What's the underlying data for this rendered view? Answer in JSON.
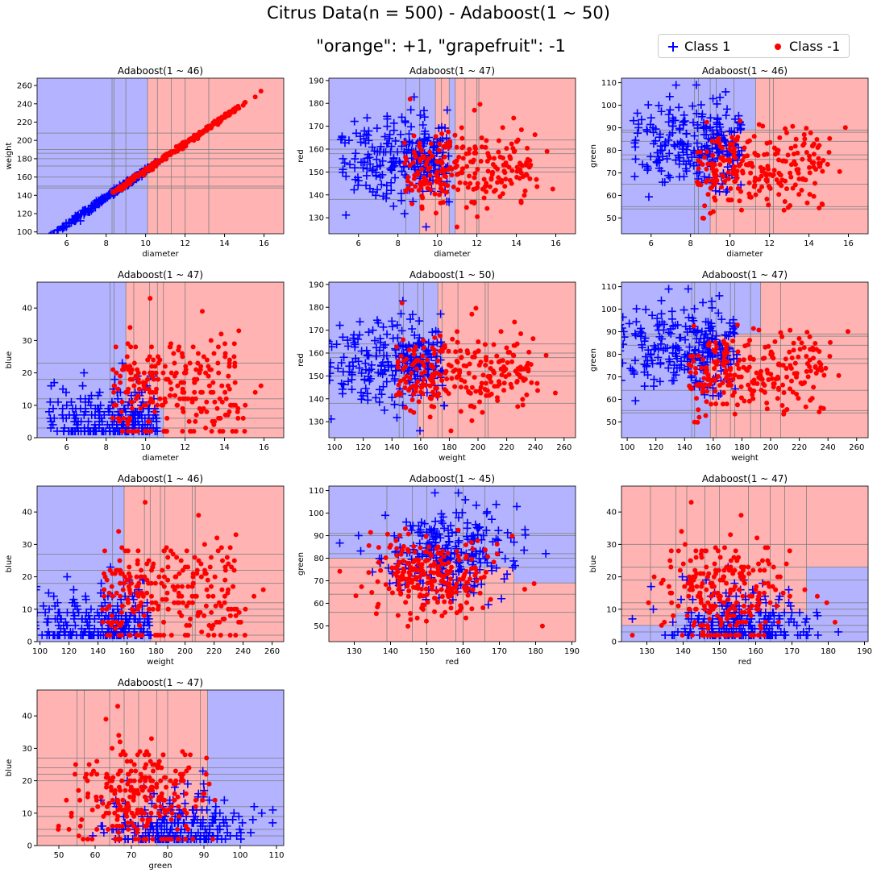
{
  "figure": {
    "title_line1": "Citrus Data(n = 500) - Adaboost(1 ~ 50)",
    "title_line2": "\"orange\": +1, \"grapefruit\": -1",
    "legend": [
      {
        "label": "Class 1",
        "marker": "plus",
        "color": "#0000ff"
      },
      {
        "label": "Class -1",
        "marker": "dot",
        "color": "#ff0000"
      }
    ],
    "colors": {
      "class_pos_region": "#b3b3ff",
      "class_neg_region": "#ffb3b3",
      "class_pos": "#0000ff",
      "class_neg": "#ff0000",
      "split_line": "#808080"
    }
  },
  "chart_data": [
    {
      "type": "scatter",
      "title": "Adaboost(1 ~ 46)",
      "xlabel": "diameter",
      "ylabel": "weight",
      "xlim": [
        4.5,
        17
      ],
      "ylim": [
        98,
        268
      ],
      "xticks": [
        6,
        8,
        10,
        12,
        14,
        16
      ],
      "yticks": [
        100,
        120,
        140,
        160,
        180,
        200,
        220,
        240,
        260
      ],
      "regions": [
        {
          "x0": 4.5,
          "x1": 9.0,
          "y0": 98,
          "y1": 268,
          "cls": 1
        },
        {
          "x0": 9.0,
          "x1": 10.1,
          "y0": 98,
          "y1": 268,
          "cls": 1
        },
        {
          "x0": 9.0,
          "x1": 17,
          "y0": 98,
          "y1": 268,
          "cls": -1
        },
        {
          "x0": 9.0,
          "x1": 10.1,
          "y0": 98,
          "y1": 268,
          "cls": 1
        }
      ],
      "vlines": [
        8.3,
        8.4,
        9.0,
        10.1,
        10.6,
        11.3,
        12.0,
        13.2
      ],
      "hlines": [
        148,
        150,
        160,
        172,
        180,
        186,
        190,
        208
      ]
    },
    {
      "type": "scatter",
      "title": "Adaboost(1 ~ 47)",
      "xlabel": "diameter",
      "ylabel": "red",
      "xlim": [
        4.5,
        17
      ],
      "ylim": [
        123,
        191
      ],
      "xticks": [
        6,
        8,
        10,
        12,
        14,
        16
      ],
      "yticks": [
        130,
        140,
        150,
        160,
        170,
        180,
        190
      ],
      "regions": [
        {
          "x0": 4.5,
          "x1": 9.1,
          "y0": 123,
          "y1": 191,
          "cls": 1
        },
        {
          "x0": 9.1,
          "x1": 17,
          "y0": 123,
          "y1": 191,
          "cls": -1
        },
        {
          "x0": 10.6,
          "x1": 10.9,
          "y0": 123,
          "y1": 191,
          "cls": 1
        },
        {
          "x0": 9.1,
          "x1": 9.9,
          "y0": 150,
          "y1": 191,
          "cls": 1
        }
      ],
      "vlines": [
        8.4,
        9.1,
        9.9,
        10.2,
        10.6,
        10.9,
        11.4,
        12.0,
        12.1
      ],
      "hlines": [
        138,
        150,
        152,
        158,
        160,
        164
      ]
    },
    {
      "type": "scatter",
      "title": "Adaboost(1 ~ 46)",
      "xlabel": "diameter",
      "ylabel": "green",
      "xlim": [
        4.5,
        17
      ],
      "ylim": [
        43,
        112
      ],
      "xticks": [
        6,
        8,
        10,
        12,
        14,
        16
      ],
      "yticks": [
        50,
        60,
        70,
        80,
        90,
        100,
        110
      ],
      "regions": [
        {
          "x0": 4.5,
          "x1": 9.0,
          "y0": 43,
          "y1": 112,
          "cls": 1
        },
        {
          "x0": 9.0,
          "x1": 17,
          "y0": 43,
          "y1": 112,
          "cls": -1
        },
        {
          "x0": 9.0,
          "x1": 11.3,
          "y0": 89,
          "y1": 112,
          "cls": 1
        }
      ],
      "vlines": [
        8.2,
        8.4,
        9.0,
        9.3,
        10.2,
        11.3,
        12.0,
        12.2
      ],
      "hlines": [
        54,
        55,
        65,
        76,
        78,
        84,
        88,
        89
      ]
    },
    {
      "type": "scatter",
      "title": "Adaboost(1 ~ 47)",
      "xlabel": "diameter",
      "ylabel": "blue",
      "xlim": [
        4.5,
        17
      ],
      "ylim": [
        0,
        48
      ],
      "xticks": [
        6,
        8,
        10,
        12,
        14,
        16
      ],
      "yticks": [
        0,
        10,
        20,
        30,
        40
      ],
      "regions": [
        {
          "x0": 4.5,
          "x1": 9.0,
          "y0": 0,
          "y1": 48,
          "cls": 1
        },
        {
          "x0": 9.0,
          "x1": 17,
          "y0": 0,
          "y1": 48,
          "cls": -1
        },
        {
          "x0": 9.0,
          "x1": 10.9,
          "y0": 0,
          "y1": 9,
          "cls": 1
        }
      ],
      "vlines": [
        8.2,
        8.4,
        9.0,
        9.4,
        10.2,
        10.6,
        10.9,
        12.0
      ],
      "hlines": [
        3,
        6,
        9,
        12,
        18,
        23
      ]
    },
    {
      "type": "scatter",
      "title": "Adaboost(1 ~ 50)",
      "xlabel": "weight",
      "ylabel": "red",
      "xlim": [
        96,
        268
      ],
      "ylim": [
        123,
        191
      ],
      "xticks": [
        100,
        120,
        140,
        160,
        180,
        200,
        220,
        240,
        260
      ],
      "yticks": [
        130,
        140,
        150,
        160,
        170,
        180,
        190
      ],
      "regions": [
        {
          "x0": 96,
          "x1": 172,
          "y0": 123,
          "y1": 191,
          "cls": 1
        },
        {
          "x0": 172,
          "x1": 268,
          "y0": 123,
          "y1": 191,
          "cls": -1
        },
        {
          "x0": 158,
          "x1": 172,
          "y0": 123,
          "y1": 150,
          "cls": -1
        }
      ],
      "vlines": [
        145,
        148,
        158,
        162,
        172,
        175,
        186,
        205,
        207
      ],
      "hlines": [
        138,
        150,
        152,
        158,
        160,
        164
      ]
    },
    {
      "type": "scatter",
      "title": "Adaboost(1 ~ 47)",
      "xlabel": "weight",
      "ylabel": "green",
      "xlim": [
        96,
        268
      ],
      "ylim": [
        43,
        112
      ],
      "xticks": [
        100,
        120,
        140,
        160,
        180,
        200,
        220,
        240,
        260
      ],
      "yticks": [
        50,
        60,
        70,
        80,
        90,
        100,
        110
      ],
      "regions": [
        {
          "x0": 96,
          "x1": 158,
          "y0": 43,
          "y1": 112,
          "cls": 1
        },
        {
          "x0": 158,
          "x1": 268,
          "y0": 43,
          "y1": 112,
          "cls": -1
        },
        {
          "x0": 158,
          "x1": 193,
          "y0": 89,
          "y1": 112,
          "cls": 1
        }
      ],
      "vlines": [
        145,
        147,
        158,
        162,
        172,
        175,
        186,
        193,
        207
      ],
      "hlines": [
        54,
        55,
        64,
        76,
        78,
        84,
        88,
        89
      ]
    },
    {
      "type": "scatter",
      "title": "Adaboost(1 ~ 46)",
      "xlabel": "weight",
      "ylabel": "blue",
      "xlim": [
        98,
        268
      ],
      "ylim": [
        0,
        48
      ],
      "xticks": [
        100,
        120,
        140,
        160,
        180,
        200,
        220,
        240,
        260
      ],
      "yticks": [
        0,
        10,
        20,
        30,
        40
      ],
      "regions": [
        {
          "x0": 98,
          "x1": 158,
          "y0": 0,
          "y1": 48,
          "cls": 1
        },
        {
          "x0": 158,
          "x1": 268,
          "y0": 0,
          "y1": 48,
          "cls": -1
        },
        {
          "x0": 158,
          "x1": 176,
          "y0": 0,
          "y1": 8,
          "cls": 1
        }
      ],
      "vlines": [
        150,
        158,
        172,
        176,
        183,
        186,
        205,
        207
      ],
      "hlines": [
        2,
        6,
        8,
        10,
        12,
        18,
        22,
        27
      ]
    },
    {
      "type": "scatter",
      "title": "Adaboost(1 ~ 45)",
      "xlabel": "red",
      "ylabel": "green",
      "xlim": [
        123,
        191
      ],
      "ylim": [
        43,
        112
      ],
      "xticks": [
        130,
        140,
        150,
        160,
        170,
        180,
        190
      ],
      "yticks": [
        50,
        60,
        70,
        80,
        90,
        100,
        110
      ],
      "regions": [
        {
          "x0": 123,
          "x1": 191,
          "y0": 43,
          "y1": 112,
          "cls": -1
        },
        {
          "x0": 123,
          "x1": 191,
          "y0": 80,
          "y1": 112,
          "cls": 1
        },
        {
          "x0": 158,
          "x1": 191,
          "y0": 76,
          "y1": 80,
          "cls": 1
        },
        {
          "x0": 174,
          "x1": 191,
          "y0": 69,
          "y1": 76,
          "cls": 1
        }
      ],
      "vlines": [
        139,
        146,
        150,
        158,
        160,
        166,
        174
      ],
      "hlines": [
        56,
        64,
        69,
        76,
        80,
        82,
        90,
        91
      ]
    },
    {
      "type": "scatter",
      "title": "Adaboost(1 ~ 47)",
      "xlabel": "red",
      "ylabel": "blue",
      "xlim": [
        123,
        191
      ],
      "ylim": [
        0,
        48
      ],
      "xticks": [
        130,
        140,
        150,
        160,
        170,
        180,
        190
      ],
      "yticks": [
        0,
        10,
        20,
        30,
        40
      ],
      "regions": [
        {
          "x0": 123,
          "x1": 191,
          "y0": 0,
          "y1": 48,
          "cls": -1
        },
        {
          "x0": 138,
          "x1": 174,
          "y0": 0,
          "y1": 9,
          "cls": 1
        },
        {
          "x0": 174,
          "x1": 191,
          "y0": 0,
          "y1": 23,
          "cls": 1
        },
        {
          "x0": 123,
          "x1": 138,
          "y0": 0,
          "y1": 5,
          "cls": 1
        }
      ],
      "vlines": [
        131,
        138,
        141,
        146,
        150,
        158,
        164,
        168,
        174
      ],
      "hlines": [
        3,
        5,
        8,
        10,
        12,
        19,
        23,
        30
      ]
    },
    {
      "type": "scatter",
      "title": "Adaboost(1 ~ 47)",
      "xlabel": "green",
      "ylabel": "blue",
      "xlim": [
        44,
        112
      ],
      "ylim": [
        0,
        48
      ],
      "xticks": [
        50,
        60,
        70,
        80,
        90,
        100,
        110
      ],
      "yticks": [
        0,
        10,
        20,
        30,
        40
      ],
      "regions": [
        {
          "x0": 44,
          "x1": 91,
          "y0": 0,
          "y1": 48,
          "cls": -1
        },
        {
          "x0": 91,
          "x1": 112,
          "y0": 0,
          "y1": 48,
          "cls": 1
        },
        {
          "x0": 77,
          "x1": 91,
          "y0": 0,
          "y1": 8,
          "cls": 1
        }
      ],
      "vlines": [
        55,
        57,
        64,
        68,
        72,
        77,
        80,
        89,
        91
      ],
      "hlines": [
        3,
        5,
        9,
        12,
        20,
        22,
        24,
        27
      ]
    }
  ]
}
